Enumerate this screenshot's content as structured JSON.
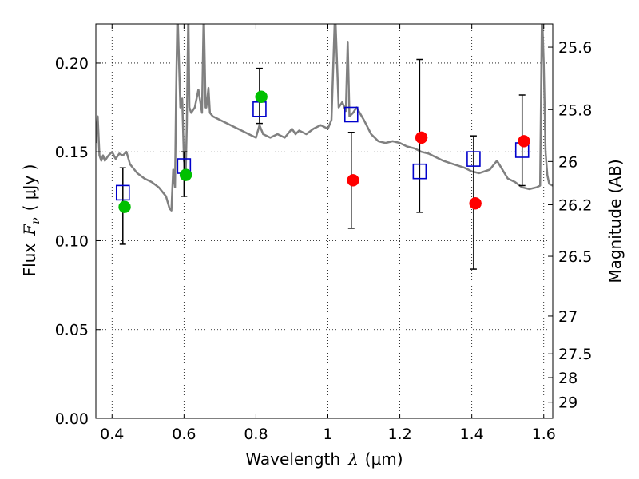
{
  "chart_data": {
    "type": "scatter",
    "xlabel": {
      "prefix": "Wavelength",
      "symbol": "λ",
      "unit": "(μm)"
    },
    "ylabel": {
      "prefix": "Flux",
      "symbol": "F",
      "subscript": "ν",
      "unit": "( μJy )"
    },
    "y2label": "Magnitude (AB)",
    "xlim": [
      0.355,
      1.625
    ],
    "ylim": [
      0.0,
      0.222
    ],
    "grid": true,
    "x_ticks": [
      {
        "value": 0.4,
        "label": "0.4"
      },
      {
        "value": 0.6,
        "label": "0.6"
      },
      {
        "value": 0.8,
        "label": "0.8"
      },
      {
        "value": 1.0,
        "label": "1"
      },
      {
        "value": 1.2,
        "label": "1.2"
      },
      {
        "value": 1.4,
        "label": "1.4"
      },
      {
        "value": 1.6,
        "label": "1.6"
      }
    ],
    "y_ticks": [
      {
        "value": 0.0,
        "label": "0.00"
      },
      {
        "value": 0.05,
        "label": "0.05"
      },
      {
        "value": 0.1,
        "label": "0.10"
      },
      {
        "value": 0.15,
        "label": "0.15"
      },
      {
        "value": 0.2,
        "label": "0.20"
      }
    ],
    "y2_ticks": [
      {
        "value": 25.6,
        "label": "25.6"
      },
      {
        "value": 25.8,
        "label": "25.8"
      },
      {
        "value": 26.0,
        "label": "26"
      },
      {
        "value": 26.2,
        "label": "26.2"
      },
      {
        "value": 26.5,
        "label": "26.5"
      },
      {
        "value": 27.0,
        "label": "27"
      },
      {
        "value": 27.5,
        "label": "27.5"
      },
      {
        "value": 28.0,
        "label": "28"
      },
      {
        "value": 29.0,
        "label": "29"
      }
    ],
    "colors": {
      "model": "#808080",
      "green": "#00c000",
      "red": "#ff0000",
      "square": "#0000cc",
      "errorbar": "#000000"
    },
    "series": [
      {
        "name": "model spectrum",
        "kind": "line",
        "x": [
          0.355,
          0.36,
          0.365,
          0.37,
          0.375,
          0.38,
          0.39,
          0.4,
          0.41,
          0.42,
          0.43,
          0.44,
          0.45,
          0.47,
          0.49,
          0.51,
          0.53,
          0.55,
          0.56,
          0.565,
          0.57,
          0.575,
          0.578,
          0.582,
          0.59,
          0.595,
          0.6,
          0.605,
          0.608,
          0.612,
          0.615,
          0.62,
          0.63,
          0.64,
          0.65,
          0.655,
          0.66,
          0.662,
          0.665,
          0.668,
          0.672,
          0.68,
          0.7,
          0.72,
          0.74,
          0.76,
          0.78,
          0.8,
          0.81,
          0.82,
          0.84,
          0.86,
          0.88,
          0.9,
          0.91,
          0.92,
          0.94,
          0.96,
          0.98,
          1.0,
          1.01,
          1.02,
          1.03,
          1.04,
          1.05,
          1.055,
          1.06,
          1.07,
          1.08,
          1.1,
          1.12,
          1.14,
          1.16,
          1.18,
          1.2,
          1.22,
          1.24,
          1.26,
          1.28,
          1.3,
          1.32,
          1.35,
          1.38,
          1.4,
          1.42,
          1.45,
          1.47,
          1.5,
          1.52,
          1.54,
          1.56,
          1.58,
          1.59,
          1.595,
          1.6,
          1.605,
          1.61,
          1.615,
          1.625
        ],
        "y": [
          0.155,
          0.17,
          0.148,
          0.145,
          0.148,
          0.145,
          0.148,
          0.15,
          0.146,
          0.149,
          0.148,
          0.15,
          0.143,
          0.138,
          0.135,
          0.133,
          0.13,
          0.125,
          0.118,
          0.117,
          0.14,
          0.13,
          0.18,
          0.23,
          0.175,
          0.18,
          0.145,
          0.14,
          0.165,
          0.23,
          0.175,
          0.172,
          0.175,
          0.185,
          0.172,
          0.23,
          0.175,
          0.175,
          0.18,
          0.186,
          0.172,
          0.17,
          0.168,
          0.166,
          0.164,
          0.162,
          0.16,
          0.158,
          0.165,
          0.16,
          0.158,
          0.16,
          0.158,
          0.163,
          0.16,
          0.162,
          0.16,
          0.163,
          0.165,
          0.163,
          0.168,
          0.23,
          0.175,
          0.178,
          0.173,
          0.212,
          0.17,
          0.172,
          0.175,
          0.168,
          0.16,
          0.156,
          0.155,
          0.156,
          0.155,
          0.153,
          0.152,
          0.15,
          0.149,
          0.147,
          0.145,
          0.143,
          0.141,
          0.139,
          0.138,
          0.14,
          0.145,
          0.135,
          0.133,
          0.13,
          0.129,
          0.13,
          0.131,
          0.23,
          0.2,
          0.15,
          0.137,
          0.132,
          0.131
        ]
      },
      {
        "name": "green points",
        "kind": "points",
        "x": [
          0.435,
          0.605,
          0.815
        ],
        "y": [
          0.119,
          0.137,
          0.181
        ]
      },
      {
        "name": "red points",
        "kind": "points",
        "x": [
          1.07,
          1.26,
          1.41,
          1.545
        ],
        "y": [
          0.134,
          0.158,
          0.121,
          0.156
        ]
      },
      {
        "name": "blue squares",
        "kind": "markers",
        "x": [
          0.43,
          0.6,
          0.81,
          1.065,
          1.255,
          1.405,
          1.54
        ],
        "y": [
          0.127,
          0.142,
          0.174,
          0.171,
          0.139,
          0.146,
          0.151
        ]
      },
      {
        "name": "error bars",
        "kind": "errorbar",
        "x": [
          0.43,
          0.6,
          0.81,
          1.065,
          1.255,
          1.405,
          1.54
        ],
        "center": [
          0.119,
          0.137,
          0.181,
          0.134,
          0.158,
          0.121,
          0.156
        ],
        "low": [
          0.098,
          0.125,
          0.166,
          0.107,
          0.116,
          0.084,
          0.131
        ],
        "high": [
          0.141,
          0.15,
          0.197,
          0.161,
          0.202,
          0.159,
          0.182
        ]
      }
    ]
  }
}
